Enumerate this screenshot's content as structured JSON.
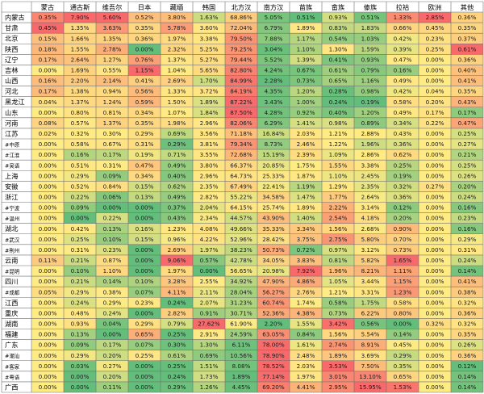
{
  "chart_data": {
    "type": "heatmap",
    "columns": [
      "蒙古",
      "通古斯",
      "维吾尔",
      "日本",
      "藏缅",
      "韩国",
      "北方汉",
      "南方汉",
      "苗族",
      "畲族",
      "傣族",
      "拉祜",
      "欧洲",
      "其他"
    ],
    "rows": [
      {
        "label": "内蒙古",
        "values": [
          "0.35%",
          "7.90%",
          "5.60%",
          "0.52%",
          "3.80%",
          "1.63%",
          "68.86%",
          "5.05%",
          "0.51%",
          "0.93%",
          "0.51%",
          "1.33%",
          "2.85%",
          "0.36%"
        ]
      },
      {
        "label": "甘肃",
        "values": [
          "0.45%",
          "1.35%",
          "3.63%",
          "0.35%",
          "5.78%",
          "3.60%",
          "72.04%",
          "6.79%",
          "1.89%",
          "0.83%",
          "1.83%",
          "0.66%",
          "0.45%",
          "0.35%"
        ]
      },
      {
        "label": "北京",
        "values": [
          "0.15%",
          "1.66%",
          "1.35%",
          "0.36%",
          "1.97%",
          "3.38%",
          "79.50%",
          "7.88%",
          "1.17%",
          "0.54%",
          "1.03%",
          "0.42%",
          "0.23%",
          "0.37%"
        ]
      },
      {
        "label": "陕西",
        "values": [
          "0.18%",
          "1.55%",
          "2.78%",
          "0.00%",
          "2.32%",
          "5.25%",
          "79.25%",
          "3.04%",
          "1.10%",
          "1.30%",
          "1.59%",
          "0.39%",
          "0.25%",
          "0.61%"
        ]
      },
      {
        "label": "辽宁",
        "values": [
          "0.17%",
          "2.64%",
          "1.27%",
          "0.76%",
          "1.37%",
          "5.27%",
          "79.44%",
          "5.52%",
          "1.39%",
          "0.41%",
          "0.93%",
          "0.47%",
          "0.00%",
          "0.36%"
        ]
      },
      {
        "label": "吉林",
        "values": [
          "0.00%",
          "1.69%",
          "0.55%",
          "1.15%",
          "1.04%",
          "5.65%",
          "82.80%",
          "4.24%",
          "0.67%",
          "0.61%",
          "0.79%",
          "0.16%",
          "0.00%",
          "0.40%"
        ]
      },
      {
        "label": "山西",
        "values": [
          "0.16%",
          "2.20%",
          "2.14%",
          "0.41%",
          "2.69%",
          "1.70%",
          "84.99%",
          "2.28%",
          "0.73%",
          "0.65%",
          "1.16%",
          "0.49%",
          "0.00%",
          "0.41%"
        ]
      },
      {
        "label": "河北",
        "values": [
          "0.17%",
          "1.38%",
          "0.94%",
          "0.56%",
          "1.33%",
          "3.72%",
          "84.19%",
          "4.35%",
          "1.20%",
          "0.28%",
          "0.98%",
          "0.42%",
          "0.04%",
          "0.35%"
        ]
      },
      {
        "label": "黑龙江",
        "values": [
          "0.04%",
          "1.37%",
          "1.24%",
          "0.59%",
          "1.50%",
          "1.89%",
          "87.22%",
          "3.43%",
          "1.00%",
          "0.24%",
          "0.19%",
          "0.58%",
          "0.20%",
          "0.43%"
        ]
      },
      {
        "label": "山东",
        "values": [
          "0.00%",
          "0.80%",
          "0.81%",
          "0.34%",
          "1.07%",
          "1.84%",
          "87.50%",
          "4.28%",
          "0.92%",
          "0.40%",
          "1.20%",
          "0.49%",
          "0.17%",
          "0.17%"
        ]
      },
      {
        "label": "河南",
        "values": [
          "0.08%",
          "0.57%",
          "1.37%",
          "0.35%",
          "1.98%",
          "2.96%",
          "82.06%",
          "6.29%",
          "1.41%",
          "0.98%",
          "0.89%",
          "0.34%",
          "0.22%",
          "0.47%"
        ]
      },
      {
        "label": "江苏",
        "values": [
          "0.02%",
          "0.32%",
          "0.30%",
          "0.29%",
          "0.69%",
          "3.56%",
          "71.18%",
          "16.84%",
          "2.03%",
          "1.21%",
          "2.88%",
          "0.43%",
          "0.00%",
          "0.25%"
        ]
      },
      {
        "label": "#中原",
        "values": [
          "0.00%",
          "0.58%",
          "0.67%",
          "0.31%",
          "0.29%",
          "3.81%",
          "79.34%",
          "8.73%",
          "2.46%",
          "1.22%",
          "1.96%",
          "0.36%",
          "0.00%",
          "0.27%"
        ]
      },
      {
        "label": "#江淮",
        "values": [
          "0.00%",
          "0.16%",
          "0.17%",
          "0.19%",
          "0.71%",
          "3.55%",
          "72.68%",
          "15.19%",
          "2.39%",
          "1.09%",
          "2.86%",
          "0.62%",
          "0.00%",
          "0.21%"
        ]
      },
      {
        "label": "#吴语",
        "values": [
          "0.00%",
          "0.51%",
          "0.31%",
          "0.47%",
          "0.49%",
          "3.80%",
          "66.37%",
          "20.85%",
          "1.75%",
          "1.55%",
          "3.38%",
          "0.25%",
          "0.00%",
          "0.25%"
        ]
      },
      {
        "label": "上海",
        "values": [
          "0.00%",
          "0.29%",
          "0.09%",
          "0.34%",
          "0.40%",
          "2.96%",
          "64.73%",
          "25.33%",
          "1.87%",
          "1.10%",
          "2.45%",
          "0.19%",
          "0.00%",
          "0.26%"
        ]
      },
      {
        "label": "安徽",
        "values": [
          "0.00%",
          "0.52%",
          "0.84%",
          "0.15%",
          "0.62%",
          "2.35%",
          "67.49%",
          "22.41%",
          "1.19%",
          "1.29%",
          "2.35%",
          "0.32%",
          "0.27%",
          "0.20%"
        ]
      },
      {
        "label": "浙江",
        "values": [
          "0.00%",
          "0.22%",
          "0.06%",
          "0.13%",
          "0.49%",
          "2.82%",
          "55.22%",
          "34.58%",
          "1.47%",
          "1.77%",
          "2.64%",
          "0.36%",
          "0.00%",
          "0.24%"
        ]
      },
      {
        "label": "#宁波",
        "values": [
          "0.00%",
          "0.09%",
          "0.00%",
          "0.00%",
          "0.37%",
          "2.04%",
          "64.15%",
          "25.74%",
          "1.89%",
          "2.22%",
          "3.14%",
          "0.12%",
          "0.00%",
          "0.16%"
        ]
      },
      {
        "label": "#温州",
        "values": [
          "0.00%",
          "0.00%",
          "0.22%",
          "0.00%",
          "0.43%",
          "2.34%",
          "44.57%",
          "43.90%",
          "1.40%",
          "2.54%",
          "4.18%",
          "0.20%",
          "0.00%",
          "0.23%"
        ]
      },
      {
        "label": "湖北",
        "values": [
          "0.00%",
          "0.42%",
          "0.13%",
          "0.16%",
          "1.23%",
          "4.08%",
          "49.66%",
          "35.33%",
          "3.34%",
          "1.56%",
          "2.68%",
          "0.90%",
          "0.00%",
          "0.16%"
        ]
      },
      {
        "label": "#武汉",
        "values": [
          "0.00%",
          "0.25%",
          "0.10%",
          "0.15%",
          "0.96%",
          "4.22%",
          "52.96%",
          "28.42%",
          "3.75%",
          "2.75%",
          "5.80%",
          "0.70%",
          "0.00%",
          "0.29%"
        ]
      },
      {
        "label": "#荆州",
        "values": [
          "0.00%",
          "0.31%",
          "0.23%",
          "0.00%",
          "2.69%",
          "1.97%",
          "38.23%",
          "50.73%",
          "0.72%",
          "0.97%",
          "3.12%",
          "0.73%",
          "0.00%",
          "0.31%"
        ]
      },
      {
        "label": "云南",
        "values": [
          "0.11%",
          "0.21%",
          "0.87%",
          "0.00%",
          "9.06%",
          "0.57%",
          "42.78%",
          "34.05%",
          "3.83%",
          "0.81%",
          "5.82%",
          "1.65%",
          "0.00%",
          "0.24%"
        ]
      },
      {
        "label": "#昆明",
        "values": [
          "0.00%",
          "0.10%",
          "1.10%",
          "0.00%",
          "1.97%",
          "0.00%",
          "56.65%",
          "20.98%",
          "7.92%",
          "1.96%",
          "8.21%",
          "1.11%",
          "0.00%",
          "0.14%"
        ]
      },
      {
        "label": "四川",
        "values": [
          "0.00%",
          "0.21%",
          "0.14%",
          "0.10%",
          "3.28%",
          "2.55%",
          "34.92%",
          "47.90%",
          "4.86%",
          "1.05%",
          "3.44%",
          "1.15%",
          "0.00%",
          "0.41%"
        ]
      },
      {
        "label": "#成都",
        "values": [
          "0.05%",
          "0.29%",
          "0.38%",
          "0.07%",
          "4.11%",
          "2.11%",
          "28.04%",
          "56.27%",
          "2.76%",
          "1.21%",
          "3.31%",
          "1.23%",
          "0.00%",
          "0.38%"
        ]
      },
      {
        "label": "江西",
        "values": [
          "0.00%",
          "0.24%",
          "0.29%",
          "0.23%",
          "0.24%",
          "2.07%",
          "31.23%",
          "60.74%",
          "1.74%",
          "0.58%",
          "1.75%",
          "0.58%",
          "0.00%",
          "0.32%"
        ]
      },
      {
        "label": "重庆",
        "values": [
          "0.00%",
          "0.48%",
          "0.24%",
          "0.00%",
          "2.82%",
          "0.91%",
          "30.71%",
          "52.36%",
          "4.38%",
          "0.73%",
          "6.22%",
          "0.80%",
          "0.00%",
          "0.36%"
        ]
      },
      {
        "label": "湖南",
        "values": [
          "0.00%",
          "0.93%",
          "0.04%",
          "0.29%",
          "0.79%",
          "27.62%",
          "61.90%",
          "2.20%",
          "1.55%",
          "3.42%",
          "0.56%",
          "0.00%",
          "0.32%",
          "0.32%"
        ]
      },
      {
        "label": "福建",
        "values": [
          "0.00%",
          "0.13%",
          "0.00%",
          "0.65%",
          "0.25%",
          "2.91%",
          "24.59%",
          "63.05%",
          "0.84%",
          "1.56%",
          "5.54%",
          "0.14%",
          "0.00%",
          "0.35%"
        ]
      },
      {
        "label": "广东",
        "values": [
          "0.00%",
          "0.09%",
          "0.17%",
          "0.07%",
          "0.30%",
          "1.30%",
          "6.11%",
          "78.00%",
          "1.61%",
          "2.74%",
          "8.91%",
          "0.45%",
          "0.00%",
          "0.26%"
        ]
      },
      {
        "label": "#潮汕",
        "values": [
          "0.00%",
          "0.29%",
          "0.20%",
          "0.25%",
          "0.61%",
          "0.69%",
          "10.56%",
          "78.90%",
          "2.48%",
          "1.89%",
          "3.69%",
          "0.29%",
          "0.00%",
          "0.36%"
        ]
      },
      {
        "label": "#客家",
        "values": [
          "0.00%",
          "0.03%",
          "0.27%",
          "0.00%",
          "0.25%",
          "1.51%",
          "8.08%",
          "78.52%",
          "2.03%",
          "3.53%",
          "7.50%",
          "0.35%",
          "0.00%",
          "0.12%"
        ]
      },
      {
        "label": "#粤语",
        "values": [
          "0.00%",
          "0.00%",
          "0.20%",
          "0.00%",
          "0.24%",
          "1.73%",
          "1.89%",
          "77.14%",
          "1.97%",
          "3.01%",
          "13.10%",
          "0.65%",
          "0.00%",
          "0.14%"
        ]
      },
      {
        "label": "广西",
        "values": [
          "0.00%",
          "0.00%",
          "0.11%",
          "0.00%",
          "0.29%",
          "1.26%",
          "4.45%",
          "69.20%",
          "4.41%",
          "2.95%",
          "15.95%",
          "1.53%",
          "0.00%",
          "0.14%"
        ]
      }
    ]
  }
}
